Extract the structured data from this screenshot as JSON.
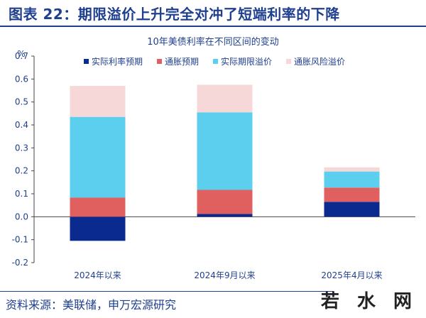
{
  "figure": {
    "title": "图表 22：期限溢价上升完全对冲了短端利率的下降",
    "source": "资料来源：美联储，申万宏源研究",
    "watermark": "若 水 网"
  },
  "chart_data": {
    "type": "bar",
    "stacked": true,
    "title": "10年美债利率在不同区间的变动",
    "ylabel": "%",
    "ylim": [
      -0.2,
      0.7
    ],
    "yticks": [
      -0.2,
      -0.1,
      0.0,
      0.1,
      0.2,
      0.3,
      0.4,
      0.5,
      0.6,
      0.7
    ],
    "ytick_labels": [
      "-0.2",
      "-0.1",
      "0.0",
      "0.1",
      "0.2",
      "0.3",
      "0.4",
      "0.5",
      "0.6",
      "0.7"
    ],
    "categories": [
      "2024年以来",
      "2024年9月以来",
      "2025年4月以来"
    ],
    "legend_position": "top",
    "series": [
      {
        "name": "实际利率预期",
        "color": "#0b2a8f",
        "values": [
          -0.105,
          0.012,
          0.065
        ]
      },
      {
        "name": "通胀预期",
        "color": "#e06060",
        "values": [
          0.083,
          0.105,
          0.062
        ]
      },
      {
        "name": "实际期限溢价",
        "color": "#5ccfee",
        "values": [
          0.352,
          0.338,
          0.07
        ]
      },
      {
        "name": "通胀风险溢价",
        "color": "#f6d8d8",
        "values": [
          0.135,
          0.12,
          0.018
        ]
      }
    ]
  }
}
